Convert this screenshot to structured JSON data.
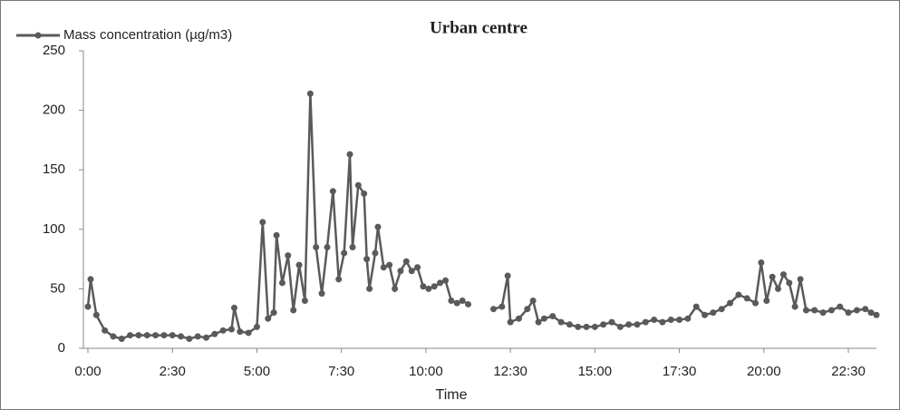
{
  "chart_data": {
    "type": "line",
    "title": "Urban centre",
    "xlabel": "Time",
    "xlim": [
      0,
      23.33
    ],
    "ylim": [
      0,
      250
    ],
    "xticks": [
      {
        "value": 0,
        "label": "0:00"
      },
      {
        "value": 2.5,
        "label": "2:30"
      },
      {
        "value": 5,
        "label": "5:00"
      },
      {
        "value": 7.5,
        "label": "7:30"
      },
      {
        "value": 10,
        "label": "10:00"
      },
      {
        "value": 12.5,
        "label": "12:30"
      },
      {
        "value": 15,
        "label": "15:00"
      },
      {
        "value": 17.5,
        "label": "17:30"
      },
      {
        "value": 20,
        "label": "20:00"
      },
      {
        "value": 22.5,
        "label": "22:30"
      }
    ],
    "yticks": [
      0,
      50,
      100,
      150,
      200,
      250
    ],
    "x": [
      0,
      0.08,
      0.25,
      0.5,
      0.75,
      1.0,
      1.25,
      1.5,
      1.75,
      2.0,
      2.25,
      2.5,
      2.75,
      3.0,
      3.25,
      3.5,
      3.75,
      4.0,
      4.25,
      4.33,
      4.5,
      4.75,
      5.0,
      5.17,
      5.33,
      5.5,
      5.58,
      5.75,
      5.92,
      6.08,
      6.25,
      6.42,
      6.58,
      6.75,
      6.92,
      7.08,
      7.25,
      7.42,
      7.58,
      7.75,
      7.83,
      8.0,
      8.17,
      8.25,
      8.33,
      8.5,
      8.58,
      8.75,
      8.92,
      9.08,
      9.25,
      9.42,
      9.58,
      9.75,
      9.92,
      10.08,
      10.25,
      10.42,
      10.58,
      10.75,
      10.92,
      11.08,
      11.25,
      11.6,
      12.0,
      12.25,
      12.42,
      12.5,
      12.75,
      13.0,
      13.17,
      13.33,
      13.5,
      13.75,
      14.0,
      14.25,
      14.5,
      14.75,
      15.0,
      15.25,
      15.5,
      15.75,
      16.0,
      16.25,
      16.5,
      16.75,
      17.0,
      17.25,
      17.5,
      17.75,
      18.0,
      18.25,
      18.5,
      18.75,
      19.0,
      19.25,
      19.5,
      19.75,
      19.92,
      20.08,
      20.25,
      20.42,
      20.58,
      20.75,
      20.92,
      21.08,
      21.25,
      21.5,
      21.75,
      22.0,
      22.25,
      22.5,
      22.75,
      23.0,
      23.17,
      23.33
    ],
    "series": [
      {
        "name": "Mass concentration (µg/m3)",
        "color": "#5a5a5a",
        "values": [
          35,
          58,
          28,
          15,
          10,
          8,
          11,
          11,
          11,
          11,
          11,
          11,
          10,
          8,
          10,
          9,
          12,
          15,
          16,
          34,
          14,
          13,
          18,
          106,
          25,
          30,
          95,
          55,
          78,
          32,
          70,
          40,
          214,
          85,
          46,
          85,
          132,
          58,
          80,
          163,
          85,
          137,
          130,
          75,
          50,
          80,
          102,
          68,
          70,
          50,
          65,
          73,
          65,
          68,
          52,
          50,
          52,
          55,
          57,
          40,
          38,
          40,
          37,
          null,
          33,
          35,
          61,
          22,
          25,
          33,
          40,
          22,
          25,
          27,
          22,
          20,
          18,
          18,
          18,
          20,
          22,
          18,
          20,
          20,
          22,
          24,
          22,
          24,
          24,
          25,
          35,
          28,
          30,
          33,
          38,
          45,
          42,
          38,
          72,
          40,
          60,
          50,
          62,
          55,
          35,
          58,
          32,
          32,
          30,
          32,
          35,
          30,
          32,
          33,
          30,
          28
        ]
      }
    ]
  }
}
